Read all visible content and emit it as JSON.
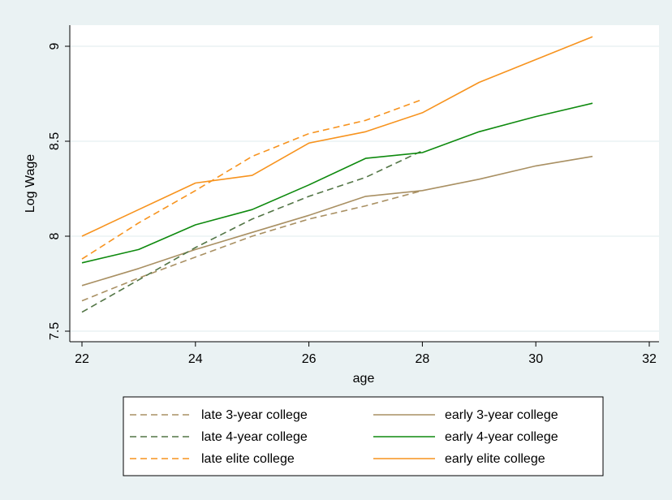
{
  "chart_data": {
    "type": "line",
    "title": "",
    "xlabel": "age",
    "ylabel": "Log Wage",
    "xlim": [
      22,
      32
    ],
    "ylim": [
      7.47,
      9.09
    ],
    "x_ticks": [
      "22",
      "24",
      "26",
      "28",
      "30",
      "32"
    ],
    "y_ticks": [
      "7.5",
      "8",
      "8.5",
      "9"
    ],
    "grid": true,
    "legend_position": "bottom",
    "series": [
      {
        "name": "late 3-year college",
        "color": "#a99063",
        "dash": "dashed",
        "points": [
          [
            22,
            7.66
          ],
          [
            23,
            7.78
          ],
          [
            24,
            7.89
          ],
          [
            25,
            8.0
          ],
          [
            26,
            8.09
          ],
          [
            27,
            8.16
          ],
          [
            28,
            8.24
          ]
        ]
      },
      {
        "name": "early 3-year college",
        "color": "#a99063",
        "dash": "solid",
        "points": [
          [
            22,
            7.74
          ],
          [
            23,
            7.83
          ],
          [
            24,
            7.93
          ],
          [
            25,
            8.02
          ],
          [
            26,
            8.11
          ],
          [
            27,
            8.21
          ],
          [
            28,
            8.24
          ],
          [
            29,
            8.3
          ],
          [
            30,
            8.37
          ],
          [
            31,
            8.42
          ]
        ]
      },
      {
        "name": "late 4-year college",
        "color": "#527545",
        "dash": "dashed",
        "points": [
          [
            22,
            7.6
          ],
          [
            23,
            7.77
          ],
          [
            24,
            7.94
          ],
          [
            25,
            8.09
          ],
          [
            26,
            8.21
          ],
          [
            27,
            8.31
          ],
          [
            28,
            8.45
          ]
        ]
      },
      {
        "name": "early 4-year college",
        "color": "#0e8a0e",
        "dash": "solid",
        "points": [
          [
            22,
            7.86
          ],
          [
            23,
            7.93
          ],
          [
            24,
            8.06
          ],
          [
            25,
            8.14
          ],
          [
            26,
            8.27
          ],
          [
            27,
            8.41
          ],
          [
            28,
            8.44
          ],
          [
            29,
            8.55
          ],
          [
            30,
            8.63
          ],
          [
            31,
            8.7
          ]
        ]
      },
      {
        "name": "late elite college",
        "color": "#f7931e",
        "dash": "dashed",
        "points": [
          [
            22,
            7.88
          ],
          [
            23,
            8.07
          ],
          [
            24,
            8.24
          ],
          [
            25,
            8.42
          ],
          [
            26,
            8.54
          ],
          [
            27,
            8.61
          ],
          [
            28,
            8.72
          ]
        ]
      },
      {
        "name": "early elite college",
        "color": "#f7931e",
        "dash": "solid",
        "points": [
          [
            22,
            8.0
          ],
          [
            23,
            8.14
          ],
          [
            24,
            8.28
          ],
          [
            25,
            8.32
          ],
          [
            26,
            8.49
          ],
          [
            27,
            8.55
          ],
          [
            28,
            8.65
          ],
          [
            29,
            8.81
          ],
          [
            30,
            8.93
          ],
          [
            31,
            9.05
          ]
        ]
      }
    ],
    "legend_order": [
      "late 3-year college",
      "early 3-year college",
      "late 4-year college",
      "early 4-year college",
      "late elite college",
      "early elite college"
    ],
    "colors": {
      "background": "#eaf2f3",
      "plot_background": "#ffffff",
      "grid": "#eaf2f3"
    }
  }
}
